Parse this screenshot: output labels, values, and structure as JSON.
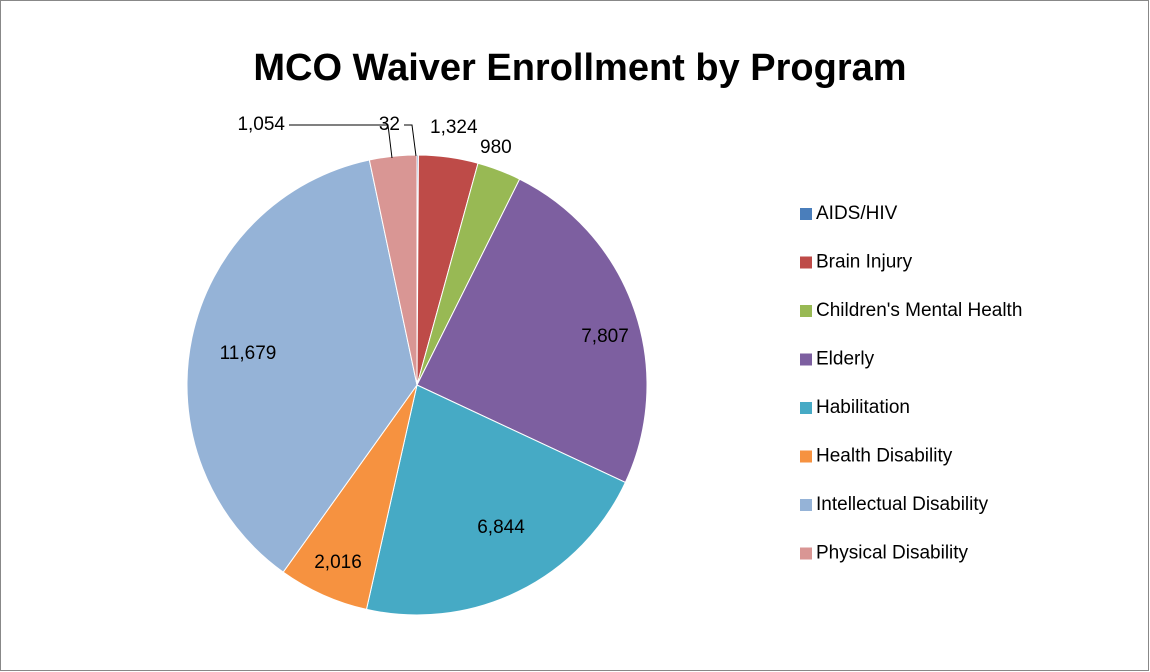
{
  "chart_data": {
    "type": "pie",
    "title": "MCO Waiver Enrollment by Program",
    "categories": [
      "AIDS/HIV",
      "Brain Injury",
      "Children's Mental Health",
      "Elderly",
      "Habilitation",
      "Health Disability",
      "Intellectual Disability",
      "Physical Disability"
    ],
    "values": [
      32,
      1324,
      980,
      7807,
      6844,
      2016,
      11679,
      1054
    ],
    "value_labels": [
      "32",
      "1,324",
      "980",
      "7,807",
      "6,844",
      "2,016",
      "11,679",
      "1,054"
    ],
    "colors": [
      "#4a7ebb",
      "#be4b48",
      "#98b954",
      "#7d5fa0",
      "#46aac5",
      "#f69240",
      "#95b3d7",
      "#d99694"
    ],
    "legend": "right"
  }
}
